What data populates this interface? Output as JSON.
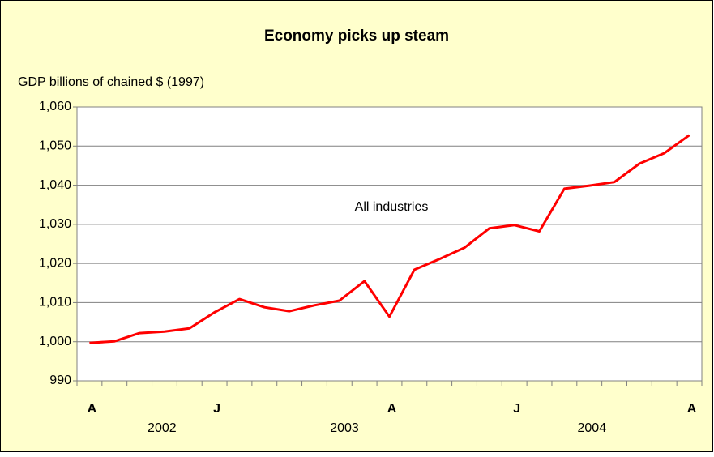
{
  "chart_data": {
    "type": "line",
    "title": "Economy picks up steam",
    "y_axis_label": "GDP billions of chained $ (1997)",
    "annotation": "All industries",
    "categories": [
      "A",
      null,
      null,
      null,
      null,
      "J",
      null,
      null,
      null,
      null,
      null,
      null,
      "A",
      null,
      null,
      null,
      null,
      "J",
      null,
      null,
      null,
      null,
      null,
      null,
      "A"
    ],
    "year_labels": [
      "2002",
      "2003",
      "2004"
    ],
    "series": [
      {
        "name": "All industries",
        "color": "#ff0000",
        "values": [
          999.7,
          1000.1,
          1002.2,
          1002.6,
          1003.4,
          1007.5,
          1010.9,
          1008.8,
          1007.8,
          1009.3,
          1010.5,
          1015.5,
          1006.4,
          1018.4,
          1021.1,
          1024.0,
          1029.0,
          1029.8,
          1028.2,
          1039.1,
          1039.9,
          1040.8,
          1045.5,
          1048.2,
          1052.8
        ]
      }
    ],
    "ylim": [
      990,
      1060
    ],
    "yticks": [
      990,
      {
        "value": 1000,
        "label": "1,000"
      },
      {
        "value": 1010,
        "label": "1,010"
      },
      {
        "value": 1020,
        "label": "1,020"
      },
      {
        "value": 1030,
        "label": "1,030"
      },
      {
        "value": 1040,
        "label": "1,040"
      },
      {
        "value": 1050,
        "label": "1,050"
      },
      {
        "value": 1060,
        "label": "1,060"
      }
    ],
    "grid": true
  }
}
